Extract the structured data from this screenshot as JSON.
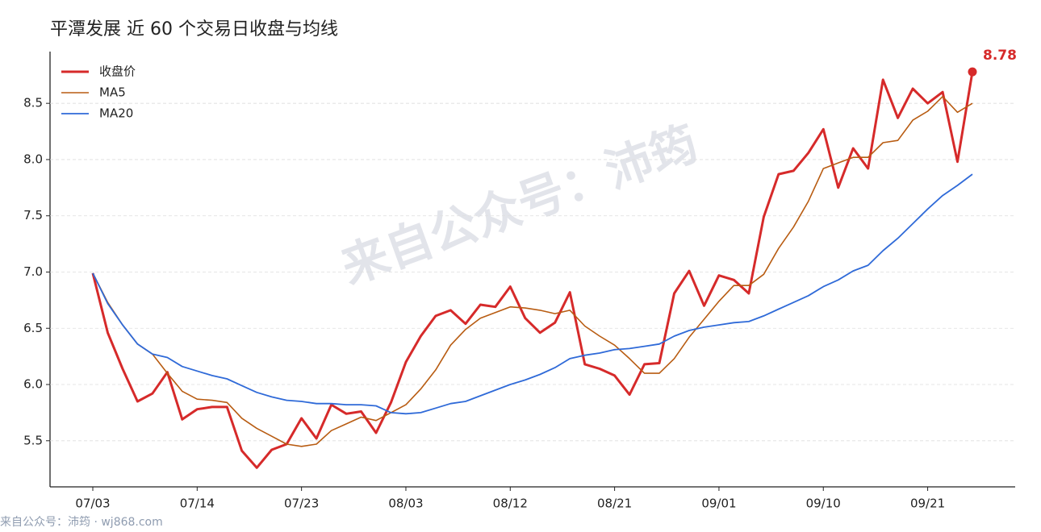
{
  "chart_data": {
    "type": "line",
    "title": "平潭发展 近 60 个交易日收盘与均线",
    "watermark": "来自公众号：沛筠",
    "footer": "来自公众号：沛筠 · wj868.com",
    "categories": [
      "07/03",
      null,
      null,
      null,
      null,
      null,
      null,
      "07/14",
      null,
      null,
      null,
      null,
      null,
      null,
      "07/23",
      null,
      null,
      null,
      null,
      null,
      null,
      "08/03",
      null,
      null,
      null,
      null,
      null,
      null,
      "08/12",
      null,
      null,
      null,
      null,
      null,
      null,
      "08/21",
      null,
      null,
      null,
      null,
      null,
      null,
      "09/01",
      null,
      null,
      null,
      null,
      null,
      null,
      "09/10",
      null,
      null,
      null,
      null,
      null,
      null,
      "09/21",
      null,
      null,
      null
    ],
    "ylim": [
      5.09,
      8.96
    ],
    "yticks": [
      5.5,
      {
        "value": 6,
        "label": "6.0"
      },
      6.5,
      {
        "value": 7,
        "label": "7.0"
      },
      7.5,
      {
        "value": 8,
        "label": "8.0"
      },
      8.5
    ],
    "grid": true,
    "legend": "upper left",
    "series": [
      {
        "name": "收盘价",
        "color": "#d62a2a",
        "width": 3,
        "values": [
          6.99,
          6.46,
          6.14,
          5.85,
          5.92,
          6.11,
          5.69,
          5.78,
          5.8,
          5.8,
          5.41,
          5.26,
          5.42,
          5.47,
          5.7,
          5.52,
          5.82,
          5.74,
          5.76,
          5.57,
          5.84,
          6.2,
          6.43,
          6.61,
          6.66,
          6.54,
          6.71,
          6.69,
          6.87,
          6.59,
          6.46,
          6.55,
          6.82,
          6.18,
          6.14,
          6.08,
          5.91,
          6.18,
          6.19,
          6.81,
          7.01,
          6.7,
          6.97,
          6.93,
          6.81,
          7.49,
          7.87,
          7.9,
          8.06,
          8.27,
          7.75,
          8.1,
          7.92,
          8.71,
          8.37,
          8.63,
          8.5,
          8.6,
          7.98,
          8.78
        ],
        "value_labels": [
          null,
          null,
          null,
          null,
          null,
          null,
          null,
          null,
          null,
          null,
          null,
          null,
          null,
          null,
          null,
          null,
          null,
          null,
          null,
          null,
          null,
          null,
          null,
          null,
          null,
          null,
          null,
          null,
          null,
          null,
          null,
          null,
          null,
          null,
          null,
          null,
          null,
          null,
          null,
          null,
          null,
          null,
          null,
          null,
          null,
          null,
          null,
          null,
          null,
          null,
          null,
          null,
          null,
          null,
          null,
          null,
          null,
          null,
          null,
          "8.78"
        ]
      },
      {
        "name": "MA5",
        "color": "#b85c12",
        "width": 1.6,
        "values": [
          6.99,
          6.73,
          6.53,
          6.36,
          6.27,
          6.1,
          5.94,
          5.87,
          5.86,
          5.84,
          5.7,
          5.61,
          5.54,
          5.47,
          5.45,
          5.47,
          5.59,
          5.65,
          5.71,
          5.68,
          5.75,
          5.82,
          5.96,
          6.13,
          6.35,
          6.49,
          6.59,
          6.64,
          6.69,
          6.68,
          6.66,
          6.63,
          6.66,
          6.52,
          6.43,
          6.35,
          6.23,
          6.1,
          6.1,
          6.23,
          6.42,
          6.58,
          6.74,
          6.88,
          6.88,
          6.98,
          7.21,
          7.4,
          7.63,
          7.92,
          7.97,
          8.02,
          8.02,
          8.15,
          8.17,
          8.35,
          8.43,
          8.56,
          8.42,
          8.5
        ]
      },
      {
        "name": "MA20",
        "color": "#2f6ad8",
        "width": 1.8,
        "values": [
          6.99,
          6.72,
          6.53,
          6.36,
          6.27,
          6.24,
          6.16,
          6.12,
          6.08,
          6.05,
          5.99,
          5.93,
          5.89,
          5.86,
          5.85,
          5.83,
          5.83,
          5.82,
          5.82,
          5.81,
          5.75,
          5.74,
          5.75,
          5.79,
          5.83,
          5.85,
          5.9,
          5.95,
          6.0,
          6.04,
          6.09,
          6.15,
          6.23,
          6.26,
          6.28,
          6.31,
          6.32,
          6.34,
          6.36,
          6.43,
          6.48,
          6.51,
          6.53,
          6.55,
          6.56,
          6.61,
          6.67,
          6.73,
          6.79,
          6.87,
          6.93,
          7.01,
          7.06,
          7.19,
          7.3,
          7.43,
          7.56,
          7.68,
          7.77,
          7.87
        ]
      }
    ]
  }
}
